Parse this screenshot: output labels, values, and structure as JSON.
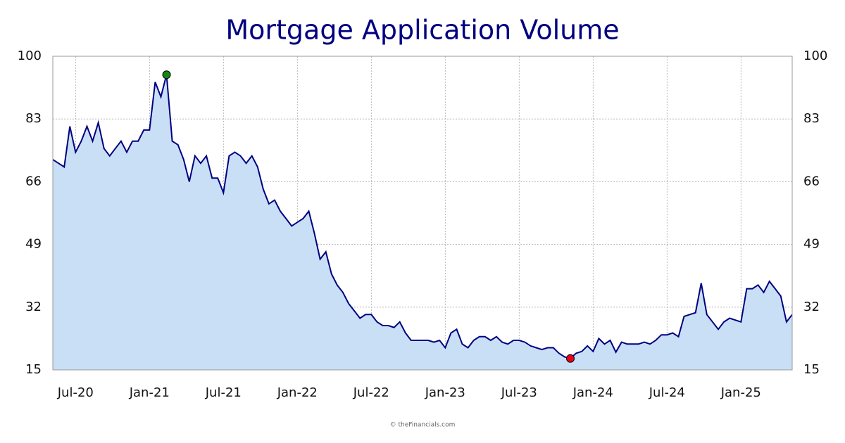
{
  "chart_data": {
    "type": "area",
    "title": "Mortgage Application Volume",
    "footer": "© theFinancials.com",
    "categories": [
      null,
      null,
      null,
      null,
      "Jul-20",
      null,
      null,
      null,
      null,
      null,
      null,
      null,
      null,
      null,
      null,
      null,
      null,
      "Jan-21",
      null,
      null,
      null,
      null,
      null,
      null,
      null,
      null,
      null,
      null,
      null,
      null,
      "Jul-21",
      null,
      null,
      null,
      null,
      null,
      null,
      null,
      null,
      null,
      null,
      null,
      null,
      "Jan-22",
      null,
      null,
      null,
      null,
      null,
      null,
      null,
      null,
      null,
      null,
      null,
      null,
      "Jul-22",
      null,
      null,
      null,
      null,
      null,
      null,
      null,
      null,
      null,
      null,
      null,
      null,
      "Jan-23",
      null,
      null,
      null,
      null,
      null,
      null,
      null,
      null,
      null,
      null,
      null,
      null,
      "Jul-23",
      null,
      null,
      null,
      null,
      null,
      null,
      null,
      null,
      null,
      null,
      null,
      null,
      "Jan-24",
      null,
      null,
      null,
      null,
      null,
      null,
      null,
      null,
      null,
      null,
      null,
      null,
      "Jul-24",
      null,
      null,
      null,
      null,
      null,
      null,
      null,
      null,
      null,
      null,
      null,
      null,
      "Jan-25",
      null,
      null,
      null,
      null,
      null,
      null,
      null,
      null,
      null
    ],
    "values": [
      72,
      71,
      70,
      81,
      74,
      77,
      81,
      77,
      82,
      75,
      73,
      75,
      77,
      74,
      77,
      77,
      80,
      80,
      93,
      89,
      95,
      77,
      76,
      72,
      66,
      73,
      71,
      73,
      67,
      67,
      63,
      73,
      74,
      73,
      71,
      73,
      70,
      64,
      60,
      61,
      58,
      56,
      54,
      55,
      56,
      58,
      52,
      45,
      47,
      41,
      38,
      36,
      33,
      31,
      29,
      30,
      30,
      28,
      27,
      27,
      26.5,
      28,
      25,
      23,
      23,
      23,
      23,
      22.5,
      23,
      21,
      25,
      26,
      22,
      21,
      23,
      24,
      24,
      23,
      24,
      22.5,
      22,
      23,
      23,
      22.5,
      21.5,
      21,
      20.5,
      21,
      21,
      19.5,
      18.5,
      18.1,
      19.5,
      20,
      21.5,
      20,
      23.5,
      22,
      23,
      19.8,
      22.5,
      22,
      22,
      22,
      22.5,
      22,
      23,
      24.5,
      24.5,
      25,
      24,
      29.5,
      30,
      30.5,
      38.5,
      30,
      28,
      26,
      28,
      29,
      28.5,
      28,
      37,
      37,
      38,
      36,
      39,
      37,
      35,
      28,
      30
    ],
    "color": "#000080",
    "fill": "#c9dff5",
    "high_color": "#118811",
    "low_color": "#e8001c",
    "ylim": [
      15,
      100
    ],
    "yticks": [
      15,
      32,
      49,
      66,
      83,
      100
    ],
    "grid": true
  }
}
